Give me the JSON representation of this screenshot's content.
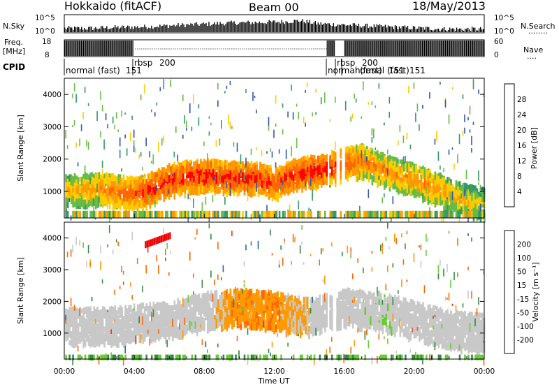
{
  "header": {
    "station": "Hokkaido (fitACF)",
    "beam": "Beam 00",
    "date": "18/May/2013"
  },
  "nsky_panel": {
    "left_label": "N.Sky",
    "right_label": "N.Search",
    "right_line": "........",
    "left_ticks": [
      "10^5",
      "10^0"
    ],
    "right_ticks": [
      "10^5",
      "10^0"
    ]
  },
  "freq_panel": {
    "left_label_1": "Freq.",
    "left_label_2": "[MHz]",
    "left_ticks": [
      "18",
      "8"
    ],
    "right_label": "Nave",
    "right_line": "....",
    "right_ticks": [
      "60",
      "0"
    ]
  },
  "cpid_panel": {
    "label": "CPID",
    "segments": [
      {
        "text": "normal (fast)",
        "start_hour": 0.0
      },
      {
        "text": "151",
        "start_hour": 3.5
      },
      {
        "text": "rbsp",
        "start_hour": 4.0
      },
      {
        "text": "200",
        "start_hour": 5.1
      },
      {
        "text": "normal (fast)",
        "start_hour": 15.1
      },
      {
        "text": "151",
        "start_hour": 16.4
      },
      {
        "text": "rbsp",
        "start_hour": 16.0
      },
      {
        "text": "200",
        "start_hour": 17.0
      },
      {
        "text": "normal (fast)",
        "start_hour": 16.9
      },
      {
        "text": "151",
        "start_hour": 19.4
      }
    ]
  },
  "power_colorbar": {
    "label": "Power [dB]",
    "ticks": [
      "28",
      "24",
      "20",
      "16",
      "12",
      "8",
      "4"
    ],
    "colors": [
      "#ff0000",
      "#ff6600",
      "#ff9900",
      "#ffcc00",
      "#66bb44",
      "#339966",
      "#3355aa",
      "#0000ee"
    ]
  },
  "velocity_colorbar": {
    "label": "Velocity [m s⁻¹]",
    "ticks": [
      "200",
      "100",
      "50",
      "15",
      "-15",
      "-50",
      "-100",
      "-200"
    ],
    "colors": [
      "#2233aa",
      "#226699",
      "#338844",
      "#66cc33",
      "#c8c8c8",
      "#ff9900",
      "#ff6600",
      "#ff3300",
      "#ee0000"
    ]
  },
  "x_axis": {
    "label": "Time UT",
    "ticks": [
      "00:00",
      "04:00",
      "08:00",
      "12:00",
      "16:00",
      "20:00",
      "00:00"
    ]
  },
  "chart_data": {
    "type": "heatmap",
    "x_range_hours": [
      0,
      24
    ],
    "y_range_km": [
      180,
      4500
    ],
    "ylabel": "Slant Range [km]",
    "xlabel": "Time UT",
    "yticks": [
      1000,
      2000,
      3000,
      4000
    ],
    "nsky_levels": [
      0.25,
      0.25,
      0.3,
      0.32,
      0.35,
      0.4,
      0.45,
      0.5,
      0.55,
      0.6,
      0.62,
      0.65,
      0.68,
      0.75,
      0.55,
      0.5,
      0.45,
      0.4,
      0.35,
      0.3,
      0.25,
      0.22,
      0.2,
      0.2
    ],
    "power_main_trace": {
      "hours": [
        0,
        1,
        2,
        3,
        4,
        5,
        6,
        7,
        8,
        9,
        10,
        11,
        12,
        13,
        14,
        15,
        16,
        17,
        18,
        19,
        20,
        21,
        22,
        23,
        24
      ],
      "range_km": [
        1100,
        1150,
        1200,
        1100,
        1050,
        1200,
        1450,
        1550,
        1600,
        1550,
        1500,
        1500,
        1350,
        1600,
        1700,
        1800,
        1950,
        2050,
        1800,
        1600,
        1450,
        1250,
        1000,
        800,
        700
      ],
      "power_db": [
        20,
        20,
        22,
        24,
        26,
        28,
        28,
        28,
        28,
        28,
        28,
        28,
        26,
        28,
        28,
        28,
        26,
        24,
        22,
        22,
        22,
        22,
        20,
        18,
        16
      ]
    },
    "velocity_main_trace": {
      "hours": [
        0,
        2,
        4,
        6,
        8,
        10,
        12,
        14,
        16,
        18,
        20,
        22,
        24
      ],
      "range_km": [
        1300,
        1300,
        1400,
        1500,
        1800,
        1900,
        1800,
        1600,
        1900,
        1800,
        1500,
        1200,
        1100
      ],
      "velocity_ms": [
        0,
        0,
        0,
        0,
        0,
        -30,
        -30,
        0,
        0,
        10,
        0,
        0,
        0
      ]
    }
  }
}
